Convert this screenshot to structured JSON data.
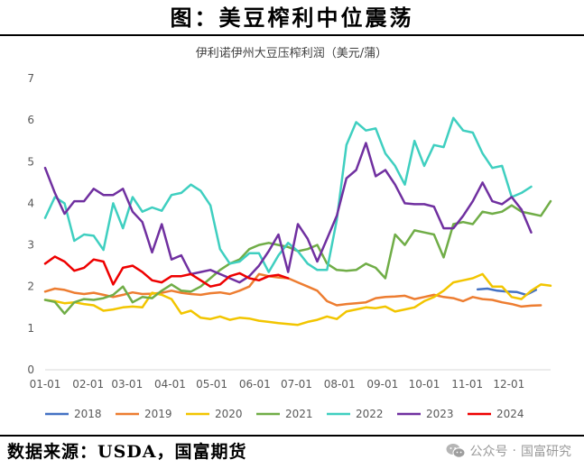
{
  "header": {
    "title": "图：美豆榨利中位震荡"
  },
  "footer": {
    "source": "数据来源：USDA，国富期货",
    "brand_platform": "公众号",
    "brand_separator": "·",
    "brand_name": "国富研究"
  },
  "colors": {
    "2018": "#4472c4",
    "2019": "#ed7d31",
    "2020": "#f2c500",
    "2021": "#70ad47",
    "2022": "#3fcfc0",
    "2023": "#7030a0",
    "2024": "#ee0000",
    "axis": "#d9d9d9",
    "text": "#595959"
  },
  "chart_data": {
    "type": "line",
    "title": "伊利诺伊州大豆压榨利润（美元/蒲）",
    "xlabel": "",
    "ylabel": "",
    "ylim": [
      0,
      7
    ],
    "yticks": [
      "0",
      "1",
      "2",
      "3",
      "4",
      "5",
      "6",
      "7"
    ],
    "x_ticks": [
      "01-01",
      "02-01",
      "03-01",
      "04-01",
      "05-01",
      "06-01",
      "07-01",
      "08-01",
      "09-01",
      "10-01",
      "11-01",
      "12-01"
    ],
    "x_unit": "week of year (0-52)",
    "legend_position": "bottom",
    "grid": false,
    "series": [
      {
        "name": "2018",
        "color_key": "2018",
        "x": [
          44.5,
          45.5,
          46.5,
          47.5,
          48.5,
          49.5,
          50.5
        ],
        "y": [
          1.93,
          1.95,
          1.9,
          1.88,
          1.87,
          1.8,
          1.92
        ]
      },
      {
        "name": "2019",
        "color_key": "2019",
        "x": [
          0,
          1,
          2,
          3,
          4,
          5,
          6,
          7,
          8,
          9,
          10,
          11,
          12,
          13,
          14,
          15,
          16,
          17,
          18,
          19,
          20,
          21,
          22,
          23,
          24,
          25,
          26,
          27,
          28,
          29,
          30,
          31,
          32,
          33,
          34,
          35,
          36,
          37,
          38,
          39,
          40,
          41,
          42,
          43,
          44,
          45,
          46,
          47,
          48,
          49,
          50,
          51
        ],
        "y": [
          1.88,
          1.95,
          1.92,
          1.85,
          1.82,
          1.85,
          1.8,
          1.75,
          1.8,
          1.86,
          1.82,
          1.83,
          1.85,
          1.9,
          1.85,
          1.82,
          1.8,
          1.84,
          1.86,
          1.82,
          1.9,
          2.0,
          2.3,
          2.25,
          2.22,
          2.2,
          2.1,
          2.0,
          1.9,
          1.65,
          1.55,
          1.58,
          1.6,
          1.62,
          1.72,
          1.75,
          1.76,
          1.78,
          1.7,
          1.75,
          1.8,
          1.75,
          1.72,
          1.65,
          1.75,
          1.7,
          1.68,
          1.62,
          1.58,
          1.52,
          1.54,
          1.55
        ]
      },
      {
        "name": "2020",
        "color_key": "2020",
        "x": [
          0,
          1,
          2,
          3,
          4,
          5,
          6,
          7,
          8,
          9,
          10,
          11,
          12,
          13,
          14,
          15,
          16,
          17,
          18,
          19,
          20,
          21,
          22,
          23,
          24,
          25,
          26,
          27,
          28,
          29,
          30,
          31,
          32,
          33,
          34,
          35,
          36,
          37,
          38,
          39,
          40,
          41,
          42,
          43,
          44,
          45,
          46,
          47,
          48,
          49,
          50,
          51,
          52
        ],
        "y": [
          1.68,
          1.65,
          1.6,
          1.62,
          1.58,
          1.55,
          1.42,
          1.45,
          1.5,
          1.52,
          1.5,
          1.85,
          1.8,
          1.7,
          1.35,
          1.42,
          1.25,
          1.22,
          1.28,
          1.2,
          1.25,
          1.23,
          1.18,
          1.15,
          1.12,
          1.1,
          1.08,
          1.15,
          1.2,
          1.28,
          1.22,
          1.4,
          1.45,
          1.5,
          1.48,
          1.52,
          1.4,
          1.45,
          1.5,
          1.65,
          1.75,
          1.9,
          2.1,
          2.15,
          2.2,
          2.3,
          2.0,
          2.0,
          1.75,
          1.7,
          1.9,
          2.05,
          2.02
        ]
      },
      {
        "name": "2021",
        "color_key": "2021",
        "x": [
          0,
          1,
          2,
          3,
          4,
          5,
          6,
          7,
          8,
          9,
          10,
          11,
          12,
          13,
          14,
          15,
          16,
          17,
          18,
          19,
          20,
          21,
          22,
          23,
          24,
          25,
          26,
          27,
          28,
          29,
          30,
          31,
          32,
          33,
          34,
          35,
          36,
          37,
          38,
          39,
          40,
          41,
          42,
          43,
          44,
          45,
          46,
          47,
          48,
          49,
          50,
          51,
          52
        ],
        "y": [
          1.68,
          1.63,
          1.35,
          1.62,
          1.7,
          1.68,
          1.72,
          1.8,
          2.0,
          1.62,
          1.75,
          1.72,
          1.9,
          2.05,
          1.9,
          1.88,
          2.0,
          2.2,
          2.4,
          2.55,
          2.65,
          2.9,
          3.0,
          3.05,
          3.0,
          2.95,
          2.85,
          2.9,
          3.0,
          2.55,
          2.4,
          2.38,
          2.4,
          2.55,
          2.45,
          2.2,
          3.25,
          3.0,
          3.35,
          3.3,
          3.25,
          2.7,
          3.5,
          3.55,
          3.5,
          3.8,
          3.75,
          3.8,
          3.95,
          3.8,
          3.75,
          3.7,
          4.05
        ]
      },
      {
        "name": "2022",
        "color_key": "2022",
        "x": [
          0,
          1,
          2,
          3,
          4,
          5,
          6,
          7,
          8,
          9,
          10,
          11,
          12,
          13,
          14,
          15,
          16,
          17,
          18,
          19,
          20,
          21,
          22,
          23,
          24,
          25,
          26,
          27,
          28,
          29,
          30,
          31,
          32,
          33,
          34,
          35,
          36,
          37,
          38,
          39,
          40,
          41,
          42,
          43,
          44,
          45,
          46,
          47,
          48,
          49,
          50
        ],
        "y": [
          3.65,
          4.15,
          4.0,
          3.1,
          3.25,
          3.22,
          2.88,
          4.0,
          3.4,
          4.15,
          3.8,
          3.9,
          3.82,
          4.2,
          4.25,
          4.45,
          4.3,
          3.95,
          2.9,
          2.55,
          2.6,
          2.8,
          2.8,
          2.35,
          2.75,
          3.05,
          2.85,
          2.55,
          2.4,
          2.4,
          3.6,
          5.4,
          5.95,
          5.75,
          5.8,
          5.2,
          4.9,
          4.45,
          5.5,
          4.9,
          5.4,
          5.35,
          6.05,
          5.75,
          5.7,
          5.2,
          4.85,
          4.9,
          4.15,
          4.25,
          4.4
        ]
      },
      {
        "name": "2023",
        "color_key": "2023",
        "x": [
          0,
          1,
          2,
          3,
          4,
          5,
          6,
          7,
          8,
          9,
          10,
          11,
          12,
          13,
          14,
          15,
          16,
          17,
          18,
          19,
          20,
          21,
          22,
          23,
          24,
          25,
          26,
          27,
          28,
          29,
          30,
          31,
          32,
          33,
          34,
          35,
          36,
          37,
          38,
          39,
          40,
          41,
          42,
          43,
          44,
          45,
          46,
          47,
          48,
          49,
          50
        ],
        "y": [
          4.85,
          4.25,
          3.75,
          4.05,
          4.05,
          4.35,
          4.2,
          4.2,
          4.35,
          3.8,
          3.55,
          2.82,
          3.5,
          2.65,
          2.75,
          2.3,
          2.35,
          2.4,
          2.3,
          2.2,
          2.1,
          2.25,
          2.5,
          2.85,
          3.25,
          2.35,
          3.5,
          3.15,
          2.6,
          3.15,
          3.7,
          4.6,
          4.8,
          5.45,
          4.65,
          4.8,
          4.45,
          4.0,
          3.98,
          3.98,
          3.92,
          3.4,
          3.4,
          3.7,
          4.05,
          4.5,
          4.05,
          3.98,
          4.15,
          3.85,
          3.3
        ]
      },
      {
        "name": "2024",
        "color_key": "2024",
        "x": [
          0,
          1,
          2,
          3,
          4,
          5,
          6,
          7,
          8,
          9,
          10,
          11,
          12,
          13,
          14,
          15,
          16,
          17,
          18,
          19,
          20,
          21,
          22,
          23,
          24,
          25
        ],
        "y": [
          2.55,
          2.72,
          2.6,
          2.38,
          2.45,
          2.65,
          2.6,
          2.05,
          2.45,
          2.5,
          2.35,
          2.15,
          2.1,
          2.25,
          2.25,
          2.3,
          2.15,
          2.0,
          2.05,
          2.25,
          2.32,
          2.2,
          2.15,
          2.25,
          2.28,
          2.2
        ]
      }
    ]
  }
}
